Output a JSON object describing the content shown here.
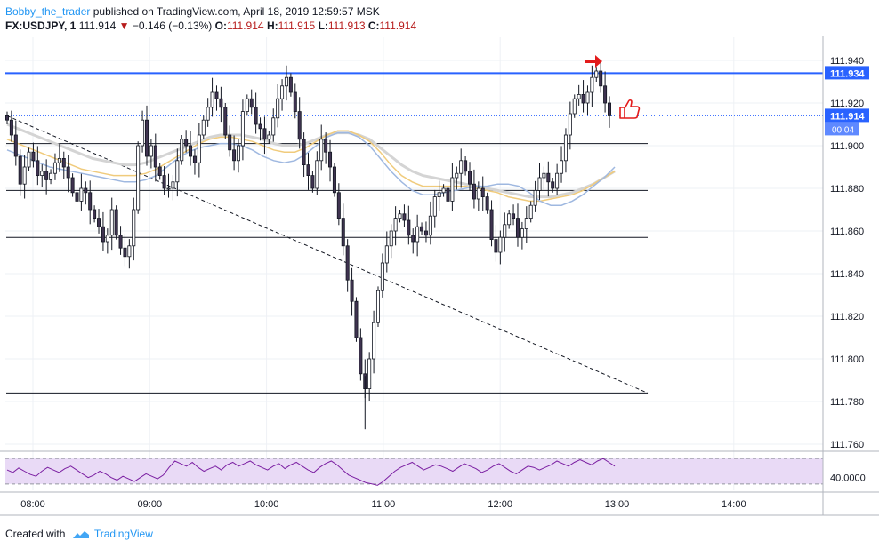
{
  "header": {
    "author": "Bobby_the_trader",
    "published_text": "published on TradingView.com, April 18, 2019 12:59:57 MSK"
  },
  "symbol_line": {
    "symbol": "FX:USDJPY, 1",
    "last": "111.914",
    "change": "−0.146 (−0.13%)",
    "o_label": "O:",
    "o": "111.914",
    "h_label": "H:",
    "h": "111.915",
    "l_label": "L:",
    "l": "111.913",
    "c_label": "C:",
    "c": "111.914"
  },
  "footer": {
    "created_with": "Created with",
    "brand": "TradingView"
  },
  "colors": {
    "candle_fill": "#3f3350",
    "wick": "#131722",
    "hline_blue": "#2962ff",
    "ma_blue": "#9fb8e0",
    "ma_orange": "#f0cb7c",
    "ma_grey": "#d4d4d4",
    "rsi": "#7b1fa2",
    "rsi_band": "#e9daf6",
    "arrow_red": "#e31b1b"
  },
  "chart_data": {
    "type": "candlestick",
    "symbol": "FX:USDJPY",
    "timeframe": "1",
    "ylim": [
      111.755,
      111.95
    ],
    "y_ticks": [
      "111.940",
      "111.920",
      "111.900",
      "111.880",
      "111.860",
      "111.840",
      "111.820",
      "111.800",
      "111.780",
      "111.760"
    ],
    "x_ticks": [
      "08:00",
      "09:00",
      "10:00",
      "11:00",
      "12:00",
      "13:00",
      "14:00"
    ],
    "price_tags": [
      {
        "value": "111.934",
        "color": "#2962ff"
      },
      {
        "value": "111.914",
        "color": "#2962ff"
      }
    ],
    "countdown": "00:04",
    "horizontal_levels": [
      {
        "value": 111.934,
        "color": "#2962ff"
      },
      {
        "value": 111.901,
        "color": "#131722"
      },
      {
        "value": 111.879,
        "color": "#131722"
      },
      {
        "value": 111.857,
        "color": "#131722"
      },
      {
        "value": 111.784,
        "color": "#131722"
      }
    ],
    "trendline": {
      "from": [
        "07:57",
        111.914
      ],
      "to": [
        "13:15",
        111.784
      ],
      "style": "dashed"
    },
    "close_series": [
      111.912,
      111.905,
      111.895,
      111.882,
      111.89,
      111.897,
      111.893,
      111.886,
      111.888,
      111.884,
      111.887,
      111.892,
      111.894,
      111.89,
      111.885,
      111.878,
      111.874,
      111.88,
      111.878,
      111.87,
      111.866,
      111.862,
      111.855,
      111.858,
      111.87,
      111.858,
      111.852,
      111.848,
      111.853,
      111.87,
      111.9,
      111.912,
      111.895,
      111.9,
      111.89,
      111.886,
      111.88,
      111.88,
      111.883,
      111.893,
      111.903,
      111.9,
      111.895,
      111.892,
      111.905,
      111.912,
      111.918,
      111.925,
      111.922,
      111.918,
      111.905,
      111.898,
      111.893,
      111.9,
      111.916,
      111.922,
      111.918,
      111.91,
      111.908,
      111.903,
      111.905,
      111.913,
      111.922,
      111.928,
      111.932,
      111.925,
      111.916,
      111.903,
      111.891,
      111.886,
      111.88,
      111.893,
      111.903,
      111.897,
      111.89,
      111.878,
      111.866,
      111.853,
      111.837,
      111.827,
      111.81,
      111.793,
      111.786,
      111.8,
      111.817,
      111.832,
      111.845,
      111.853,
      111.86,
      111.866,
      111.868,
      111.865,
      111.858,
      111.855,
      111.862,
      111.86,
      111.858,
      111.867,
      111.876,
      111.878,
      111.88,
      111.874,
      111.885,
      111.887,
      111.893,
      111.888,
      111.882,
      111.875,
      111.88,
      111.876,
      111.87,
      111.856,
      111.85,
      111.857,
      111.863,
      111.868,
      111.866,
      111.857,
      111.861,
      111.866,
      111.872,
      111.879,
      111.885,
      111.887,
      111.883,
      111.88,
      111.887,
      111.893,
      111.905,
      111.915,
      111.922,
      111.924,
      111.92,
      111.925,
      111.932,
      111.935,
      111.928,
      111.92,
      111.914
    ],
    "ma_blue_series": [
      111.898,
      111.896,
      111.894,
      111.892,
      111.89,
      111.889,
      111.888,
      111.887,
      111.886,
      111.885,
      111.884,
      111.883,
      111.883,
      111.884,
      111.886,
      111.89,
      111.894,
      111.897,
      111.899,
      111.9,
      111.901,
      111.901,
      111.9,
      111.898,
      111.895,
      111.893,
      111.892,
      111.893,
      111.896,
      111.9,
      111.904,
      111.906,
      111.906,
      111.904,
      111.9,
      111.894,
      111.888,
      111.883,
      111.879,
      111.877,
      111.877,
      111.878,
      111.879,
      111.88,
      111.881,
      111.881,
      111.882,
      111.882,
      111.881,
      111.878,
      111.874,
      111.872,
      111.872,
      111.874,
      111.877,
      111.881,
      111.885,
      111.89
    ],
    "ma_orange_series": [
      111.903,
      111.901,
      111.899,
      111.897,
      111.895,
      111.893,
      111.891,
      111.889,
      111.888,
      111.887,
      111.886,
      111.886,
      111.886,
      111.887,
      111.889,
      111.892,
      111.895,
      111.898,
      111.901,
      111.903,
      111.904,
      111.904,
      111.903,
      111.902,
      111.9,
      111.898,
      111.897,
      111.897,
      111.899,
      111.902,
      111.905,
      111.907,
      111.907,
      111.905,
      111.902,
      111.897,
      111.891,
      111.886,
      111.883,
      111.881,
      111.881,
      111.881,
      111.881,
      111.881,
      111.88,
      111.879,
      111.878,
      111.876,
      111.875,
      111.874,
      111.874,
      111.875,
      111.876,
      111.877,
      111.879,
      111.882,
      111.885,
      111.888
    ],
    "ma_grey_series": [
      111.91,
      111.908,
      111.906,
      111.904,
      111.902,
      111.9,
      111.898,
      111.896,
      111.894,
      111.893,
      111.892,
      111.891,
      111.891,
      111.892,
      111.894,
      111.896,
      111.898,
      111.9,
      111.902,
      111.904,
      111.905,
      111.905,
      111.905,
      111.904,
      111.903,
      111.901,
      111.9,
      111.9,
      111.901,
      111.903,
      111.905,
      111.906,
      111.906,
      111.905,
      111.903,
      111.899,
      111.895,
      111.891,
      111.888,
      111.886,
      111.885,
      111.884,
      111.883,
      111.882,
      111.881,
      111.88,
      111.879,
      111.878,
      111.877,
      111.876,
      111.876,
      111.876,
      111.877,
      111.878,
      111.88,
      111.882,
      111.885,
      111.888
    ],
    "rsi": {
      "ylim": [
        20,
        80
      ],
      "tick_label": "40.0000",
      "band": [
        30,
        70
      ],
      "values": [
        52,
        48,
        55,
        50,
        45,
        42,
        50,
        56,
        52,
        48,
        54,
        58,
        52,
        46,
        40,
        44,
        50,
        46,
        40,
        36,
        42,
        38,
        34,
        40,
        46,
        42,
        38,
        44,
        56,
        66,
        62,
        58,
        64,
        56,
        50,
        54,
        58,
        52,
        60,
        64,
        58,
        62,
        66,
        60,
        56,
        52,
        58,
        62,
        54,
        60,
        64,
        58,
        52,
        48,
        56,
        62,
        66,
        60,
        52,
        44,
        40,
        36,
        32,
        30,
        28,
        34,
        42,
        50,
        56,
        60,
        64,
        58,
        52,
        56,
        60,
        58,
        54,
        50,
        56,
        62,
        58,
        54,
        48,
        52,
        58,
        62,
        56,
        50,
        46,
        52,
        58,
        56,
        52,
        56,
        60,
        66,
        62,
        58,
        64,
        68,
        64,
        60,
        66,
        70,
        64,
        58
      ]
    }
  }
}
